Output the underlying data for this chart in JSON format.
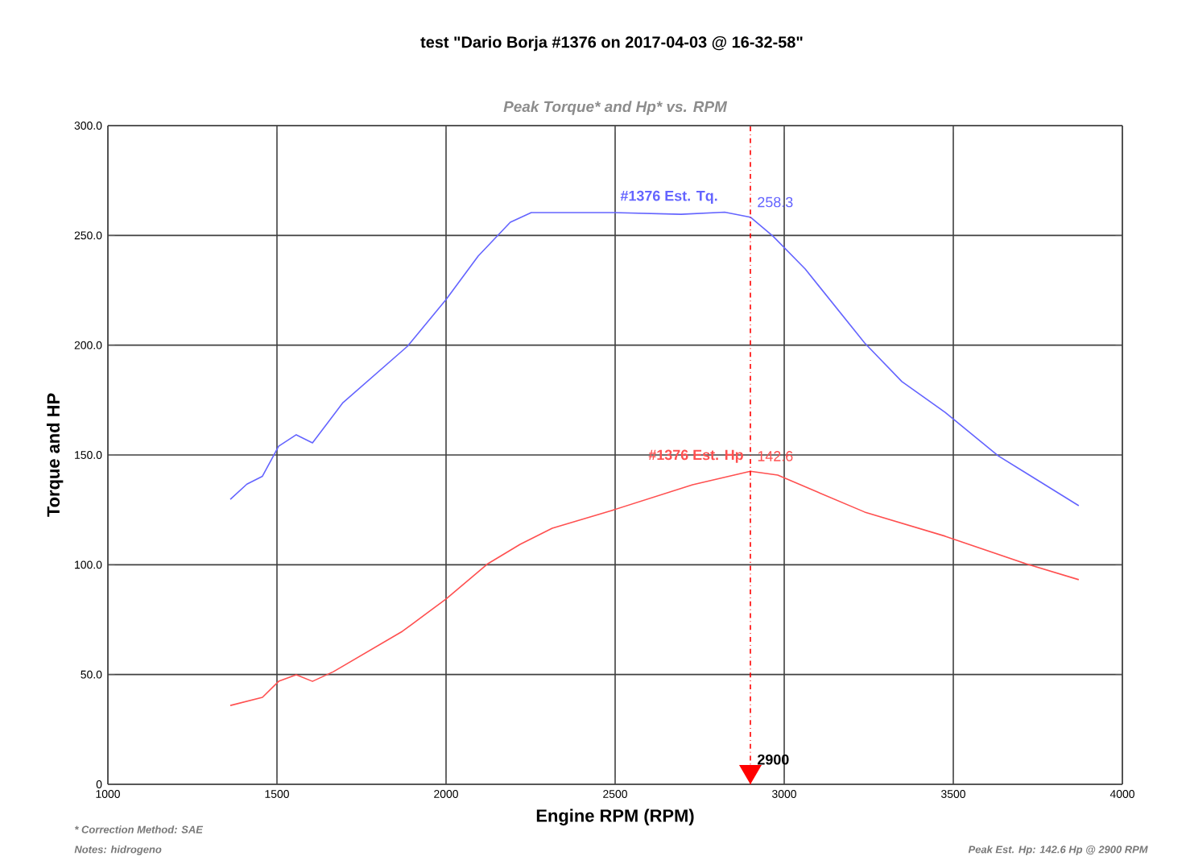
{
  "chart_data": {
    "type": "line",
    "title": "test \"Dario Borja #1376 on 2017-04-03 @ 16-32-58\"",
    "subtitle": "Peak Torque* and Hp* vs. RPM",
    "xlabel": "Engine RPM (RPM)",
    "ylabel": "Torque and HP",
    "series": [
      {
        "name": "#1376 Est. Tq.",
        "color": "#6464ff",
        "x": [
          1362,
          1411,
          1457,
          1505,
          1557,
          1605,
          1695,
          1886,
          2000,
          2095,
          2190,
          2252,
          2490,
          2695,
          2824,
          2900,
          2967,
          3062,
          3238,
          3348,
          3476,
          3633,
          3871
        ],
        "values": [
          129.8,
          136.7,
          140.3,
          154,
          159.2,
          155.5,
          173.8,
          199.5,
          220.8,
          240.6,
          256,
          260.4,
          260.4,
          259.6,
          260.6,
          258.3,
          249.6,
          234.7,
          201,
          183.4,
          169.4,
          149.6,
          126.9
        ]
      },
      {
        "name": "#1376 Est. Hp",
        "color": "#ff5050",
        "x": [
          1362,
          1457,
          1505,
          1557,
          1605,
          1667,
          1871,
          2000,
          2124,
          2219,
          2314,
          2490,
          2729,
          2900,
          2981,
          3238,
          3476,
          3714,
          3871
        ],
        "values": [
          35.9,
          39.6,
          46.9,
          49.9,
          46.9,
          51.3,
          69.7,
          84.4,
          100.5,
          109.3,
          116.6,
          124.7,
          136.4,
          142.6,
          140.8,
          124,
          113,
          100.5,
          93.2
        ]
      }
    ],
    "xlim": [
      1000,
      4000
    ],
    "ylim": [
      0,
      300
    ],
    "xticks": [
      1000,
      1500,
      2000,
      2500,
      3000,
      3500,
      4000
    ],
    "yticks": [
      0,
      {
        "value": 50,
        "label": "50.0"
      },
      {
        "value": 100,
        "label": "100.0"
      },
      {
        "value": 150,
        "label": "150.0"
      },
      {
        "value": 200,
        "label": "200.0"
      },
      {
        "value": 250,
        "label": "250.0"
      },
      {
        "value": 300,
        "label": "300.0"
      }
    ],
    "grid": true,
    "legend": false,
    "marker": "none",
    "line_style": "solid",
    "ref_lines": [
      {
        "axis": "x",
        "value": 2900,
        "label": "2900",
        "color": "#ff0000",
        "line_style": "dashed"
      }
    ],
    "annotations": [
      {
        "text": "258.3",
        "x": 2900,
        "y": 258.3
      },
      {
        "text": "142.6",
        "x": 2900,
        "y": 142.6
      },
      "* Correction Method: SAE",
      "Notes: hidrogeno",
      "Peak Est. Hp: 142.6 Hp @ 2900 RPM"
    ]
  }
}
